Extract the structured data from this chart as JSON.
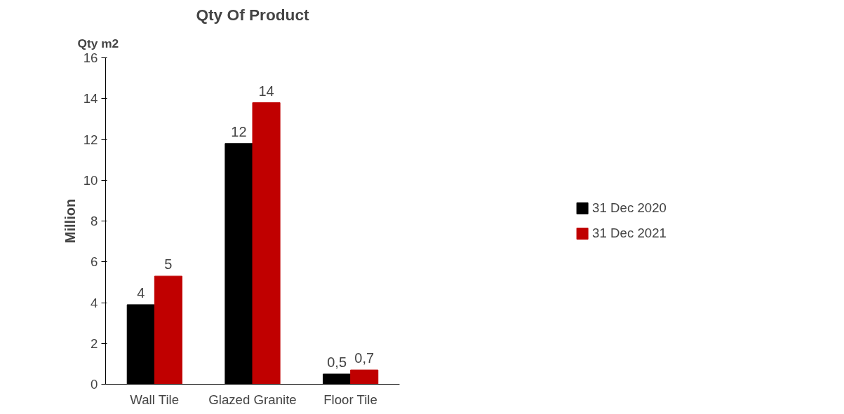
{
  "chart_data": {
    "type": "bar",
    "title": "Qty Of Product",
    "ylabel": "Million",
    "annotations": [
      "Qty m2"
    ],
    "categories": [
      "Wall Tile",
      "Glazed Granite",
      "Floor Tile"
    ],
    "series": [
      {
        "name": "31 Dec 2020",
        "color": "#000000",
        "values": [
          3.9,
          11.8,
          0.5
        ],
        "value_labels": [
          "4",
          "12",
          "0,5"
        ]
      },
      {
        "name": "31 Dec 2021",
        "color": "#c00000",
        "values": [
          5.3,
          13.8,
          0.7
        ],
        "value_labels": [
          "5",
          "14",
          "0,7"
        ]
      }
    ],
    "ylim": [
      0,
      16
    ],
    "yticks": [
      0,
      2,
      4,
      6,
      8,
      10,
      12,
      14,
      16
    ],
    "grid": false,
    "legend": "right"
  }
}
